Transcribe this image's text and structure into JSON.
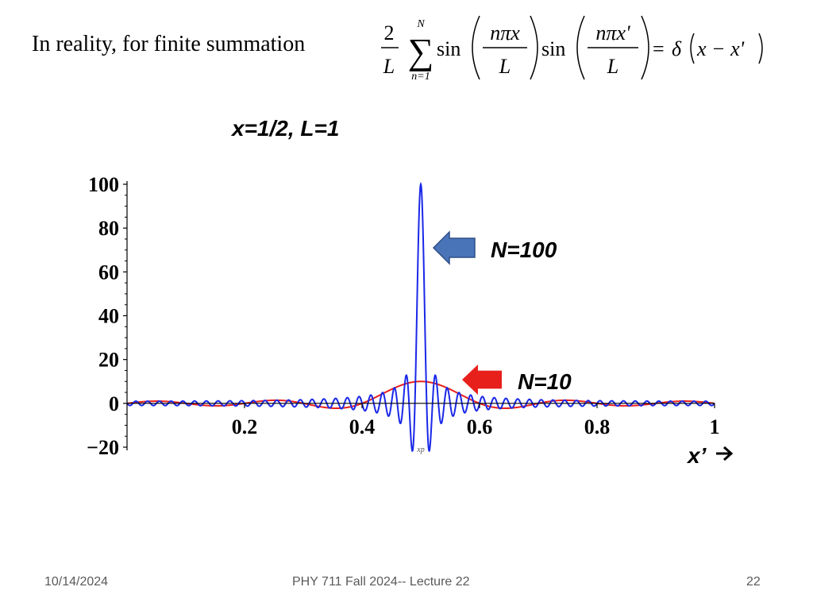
{
  "slide": {
    "intro": "In reality, for finite summation",
    "formula": {
      "coef_num": "2",
      "coef_den": "L",
      "sum_upper": "N",
      "sum_lower": "n=1",
      "sin1": "sin",
      "frac1_num": "nπx",
      "frac1_den": "L",
      "sin2": "sin",
      "frac2_num": "nπx'",
      "frac2_den": "L",
      "equals": "=",
      "rhs_delta": "δ",
      "rhs_arg": "x − x'"
    },
    "plot_title": "x=1/2, L=1"
  },
  "footer": {
    "date": "10/14/2024",
    "course": "PHY 711  Fall 2024-- Lecture 22",
    "page": "22"
  },
  "chart_data": {
    "type": "line",
    "function": "(2/L) Σ_{n=1}^{N} sin(nπx/L) sin(nπx'/L)",
    "params": {
      "x": 0.5,
      "L": 1
    },
    "xlim": [
      0,
      1
    ],
    "ylim": [
      -20,
      100
    ],
    "x_ticks": [
      "0.2",
      "0.4",
      "0.6",
      "0.8",
      "1"
    ],
    "x_tick_values": [
      0.2,
      0.4,
      0.6,
      0.8,
      1
    ],
    "y_ticks": [
      "100",
      "80",
      "60",
      "40",
      "20",
      "0",
      "−20"
    ],
    "y_tick_values": [
      100,
      80,
      60,
      40,
      20,
      0,
      -20
    ],
    "xaxis_small_label": "xp",
    "xlabel": "x’",
    "series": [
      {
        "name": "N=10",
        "N": 10,
        "color": "#e8201c"
      },
      {
        "name": "N=100",
        "N": 100,
        "color": "#1a28e8"
      }
    ],
    "annotations": [
      {
        "text": "N=100",
        "series": "N=100",
        "arrow_color": "#4a74b8"
      },
      {
        "text": "N=10",
        "series": "N=10",
        "arrow_color": "#e8201c"
      }
    ]
  }
}
